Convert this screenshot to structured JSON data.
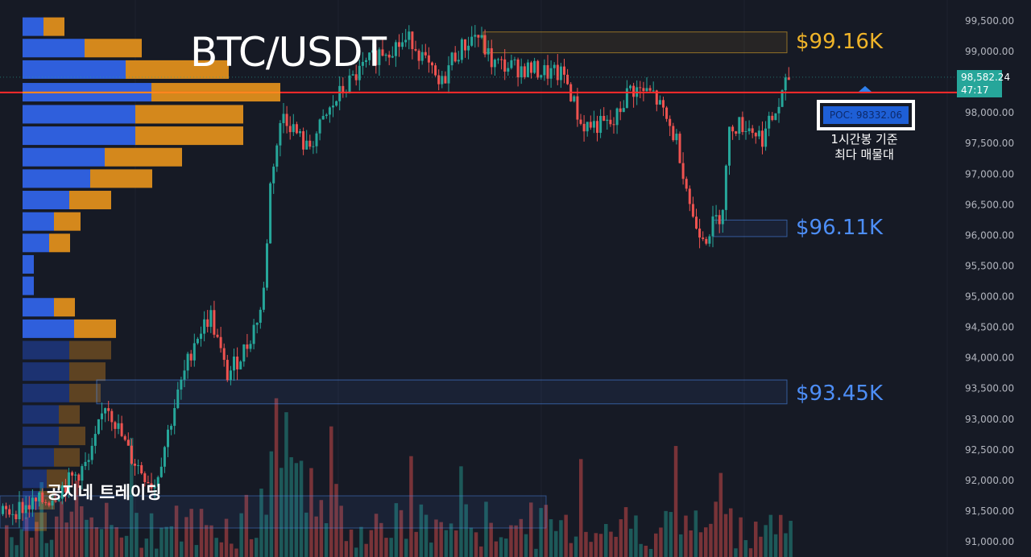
{
  "chart_data": {
    "type": "candlestick",
    "title": "BTC/USDT",
    "watermark": "공지네 트레이딩",
    "y_axis": {
      "ticks": [
        99500,
        99000,
        98500,
        98000,
        97500,
        97000,
        96500,
        96000,
        95500,
        95000,
        94500,
        94000,
        93500,
        93000,
        92500,
        92000,
        91500,
        91000
      ],
      "tick_labels": [
        "99,500.00",
        "99,000.00",
        "98,000.00",
        "97,500.00",
        "97,000.00",
        "96,500.00",
        "96,000.00",
        "95,500.00",
        "95,000.00",
        "94,500.00",
        "94,000.00",
        "93,500.00",
        "93,000.00",
        "92,500.00",
        "92,000.00",
        "91,500.00",
        "91,000.00"
      ],
      "range": [
        90800,
        99700
      ]
    },
    "current_price": {
      "value": "98,582.24",
      "countdown": "47:17",
      "price": 98582.24
    },
    "poc": {
      "label": "POC: 98332.06",
      "price": 98332.06,
      "note_line1": "1시간봉 기준",
      "note_line2": "최다 매물대"
    },
    "zones": [
      {
        "label": "$99.16K",
        "low": 98980,
        "high": 99320,
        "color": "#f0b429"
      },
      {
        "label": "$96.11K",
        "low": 95980,
        "high": 96250,
        "color": "#4d8ef7"
      },
      {
        "label": "$93.45K",
        "low": 93250,
        "high": 93640,
        "color": "#4d8ef7"
      }
    ],
    "volume_profile": {
      "price_bins": [
        99400,
        99050,
        98700,
        98330,
        97970,
        97620,
        97270,
        96920,
        96570,
        96220,
        95870,
        95520,
        95170,
        94820,
        94470,
        94120,
        93770,
        93420,
        93070,
        92720,
        92370,
        92020,
        91670,
        91320
      ],
      "buy": [
        26,
        77,
        128,
        160,
        140,
        140,
        102,
        84,
        58,
        39,
        33,
        14,
        14,
        39,
        64,
        58,
        58,
        58,
        45,
        45,
        39,
        30,
        20,
        15
      ],
      "sell": [
        26,
        71,
        128,
        160,
        134,
        134,
        96,
        77,
        52,
        33,
        26,
        0,
        0,
        26,
        52,
        52,
        45,
        39,
        26,
        33,
        32,
        26,
        20,
        15
      ]
    },
    "candles_ohlc_approx": "generated series rising from ~91,300 to ~99,400, ranging, dipping to ~95,900 and recovering to 98,582"
  }
}
